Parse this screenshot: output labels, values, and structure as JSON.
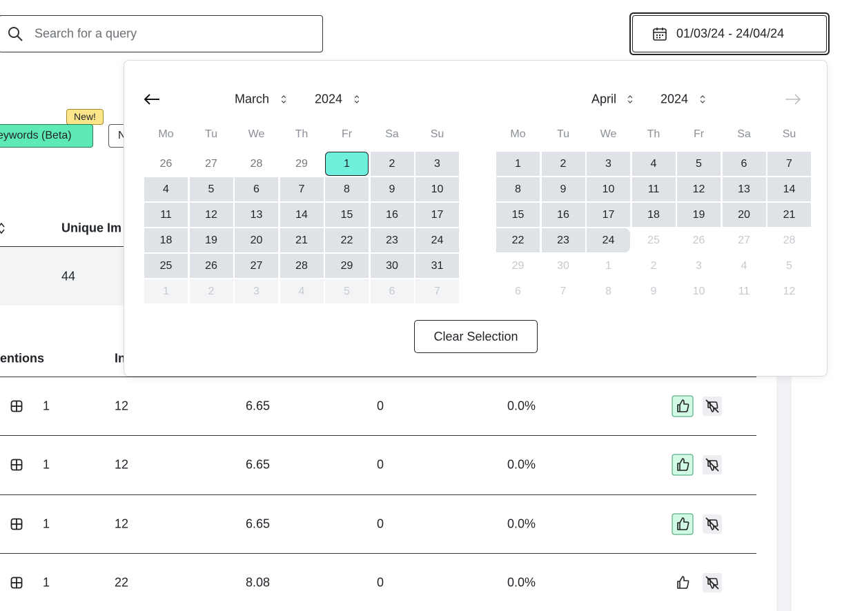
{
  "search": {
    "placeholder": "Search for a query"
  },
  "date_range": "01/03/24 - 24/04/24",
  "tabs": {
    "badge": "New!",
    "items": [
      "eywords (Beta)",
      "N"
    ]
  },
  "summary": {
    "header": "Unique Im",
    "value": "44"
  },
  "table": {
    "headers": [
      "entions",
      "In"
    ],
    "rows": [
      {
        "cells": [
          "1",
          "12",
          "6.65",
          "0",
          "0.0%"
        ],
        "liked": true
      },
      {
        "cells": [
          "1",
          "12",
          "6.65",
          "0",
          "0.0%"
        ],
        "liked": true
      },
      {
        "cells": [
          "1",
          "12",
          "6.65",
          "0",
          "0.0%"
        ],
        "liked": true
      },
      {
        "cells": [
          "1",
          "22",
          "8.08",
          "0",
          "0.0%"
        ],
        "liked": false
      }
    ]
  },
  "calendars": [
    {
      "month": "March",
      "year": "2024",
      "weekdays": [
        "Mo",
        "Tu",
        "We",
        "Th",
        "Fr",
        "Sa",
        "Su"
      ],
      "weeks": [
        [
          26,
          27,
          28,
          29,
          1,
          2,
          3
        ],
        [
          4,
          5,
          6,
          7,
          8,
          9,
          10
        ],
        [
          11,
          12,
          13,
          14,
          15,
          16,
          17
        ],
        [
          18,
          19,
          20,
          21,
          22,
          23,
          24
        ],
        [
          25,
          26,
          27,
          28,
          29,
          30,
          31
        ],
        [
          1,
          2,
          3,
          4,
          5,
          6,
          7
        ]
      ]
    },
    {
      "month": "April",
      "year": "2024",
      "weekdays": [
        "Mo",
        "Tu",
        "We",
        "Th",
        "Fr",
        "Sa",
        "Su"
      ],
      "weeks": [
        [
          1,
          2,
          3,
          4,
          5,
          6,
          7
        ],
        [
          8,
          9,
          10,
          11,
          12,
          13,
          14
        ],
        [
          15,
          16,
          17,
          18,
          19,
          20,
          21
        ],
        [
          22,
          23,
          24,
          25,
          26,
          27,
          28
        ],
        [
          29,
          30,
          1,
          2,
          3,
          4,
          5
        ],
        [
          6,
          7,
          8,
          9,
          10,
          11,
          12
        ]
      ]
    }
  ],
  "clear_button": "Clear Selection"
}
